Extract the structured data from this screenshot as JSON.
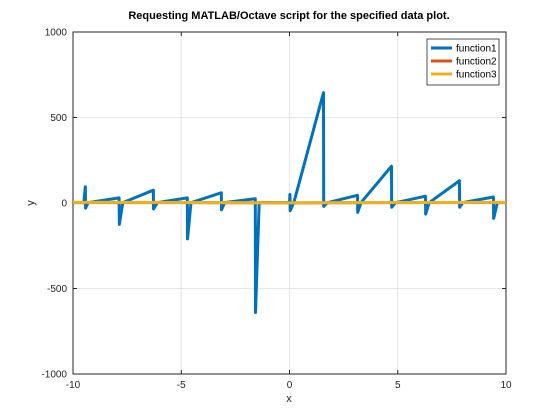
{
  "chart_data": {
    "type": "line",
    "title": "Requesting MATLAB/Octave script for the specified data plot.",
    "xlabel": "x",
    "ylabel": "y",
    "xlim": [
      -10,
      10
    ],
    "ylim": [
      -1000,
      1000
    ],
    "xticks": [
      -10,
      -5,
      0,
      5,
      10
    ],
    "yticks": [
      -1000,
      -500,
      0,
      500,
      1000
    ],
    "xtick_labels": [
      "-10",
      "-5",
      "0",
      "5",
      "10"
    ],
    "ytick_labels": [
      "-1000",
      "-500",
      "0",
      "500",
      "1000"
    ],
    "grid": true,
    "legend_position": "top-right",
    "series": [
      {
        "name": "function1",
        "color": "#0072BD",
        "points": [
          [
            -10,
            2
          ],
          [
            -9.5,
            2
          ],
          [
            -9.43,
            95
          ],
          [
            -9.42,
            -30
          ],
          [
            -9.3,
            2
          ],
          [
            -7.87,
            30
          ],
          [
            -7.86,
            -125
          ],
          [
            -7.7,
            2
          ],
          [
            -6.29,
            75
          ],
          [
            -6.28,
            -35
          ],
          [
            -6.1,
            2
          ],
          [
            -4.72,
            30
          ],
          [
            -4.71,
            -210
          ],
          [
            -4.55,
            2
          ],
          [
            -3.15,
            60
          ],
          [
            -3.14,
            -40
          ],
          [
            -3.0,
            2
          ],
          [
            -1.58,
            25
          ],
          [
            -1.57,
            -640
          ],
          [
            -1.4,
            2
          ],
          [
            0,
            2
          ],
          [
            0.02,
            50
          ],
          [
            0.03,
            -45
          ],
          [
            0.2,
            2
          ],
          [
            1.57,
            645
          ],
          [
            1.58,
            -20
          ],
          [
            1.75,
            2
          ],
          [
            3.14,
            45
          ],
          [
            3.15,
            -55
          ],
          [
            3.3,
            2
          ],
          [
            4.71,
            215
          ],
          [
            4.72,
            -25
          ],
          [
            4.9,
            2
          ],
          [
            6.28,
            40
          ],
          [
            6.29,
            -65
          ],
          [
            6.45,
            2
          ],
          [
            7.85,
            130
          ],
          [
            7.86,
            -25
          ],
          [
            8.0,
            2
          ],
          [
            9.42,
            35
          ],
          [
            9.43,
            -90
          ],
          [
            9.6,
            2
          ],
          [
            10,
            2
          ]
        ]
      },
      {
        "name": "function2",
        "color": "#D95319",
        "points": [
          [
            -10,
            3
          ],
          [
            -5,
            2
          ],
          [
            0,
            1
          ],
          [
            5,
            2
          ],
          [
            10,
            3
          ]
        ]
      },
      {
        "name": "function3",
        "color": "#EDB120",
        "points": [
          [
            -10,
            4
          ],
          [
            -5,
            3
          ],
          [
            0,
            1
          ],
          [
            5,
            3
          ],
          [
            10,
            4
          ]
        ]
      }
    ]
  }
}
